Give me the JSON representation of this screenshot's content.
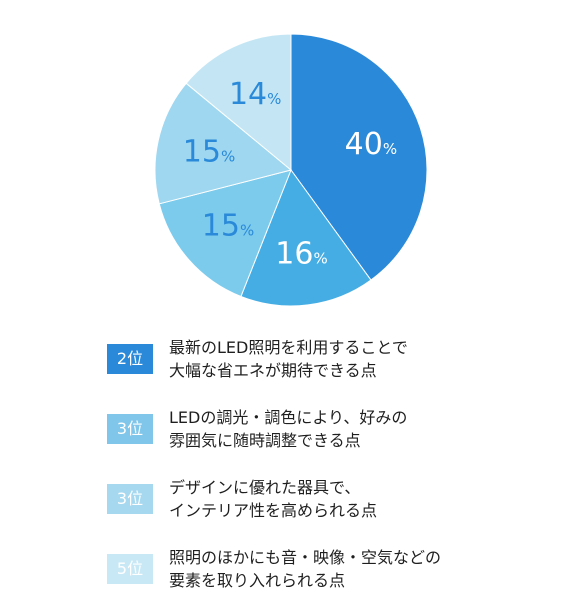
{
  "chart_data": {
    "type": "pie",
    "title": "",
    "values": [
      40,
      16,
      15,
      15,
      14
    ],
    "labels": [
      "40",
      "16",
      "15",
      "15",
      "14"
    ],
    "unit": "%",
    "direction": "clockwise from top",
    "colors": [
      "#2a8ad9",
      "#45ade3",
      "#7ccbec",
      "#9ed7ef",
      "#c4e6f4"
    ]
  },
  "legend": [
    {
      "rank": "2位",
      "color": "#2a8ad9",
      "lines": [
        "最新のLED照明を利用することで",
        "大幅な省エネが期待できる点"
      ]
    },
    {
      "rank": "3位",
      "color": "#7fc6ea",
      "lines": [
        "LEDの調光・調色により、好みの",
        "雰囲気に随時調整できる点"
      ]
    },
    {
      "rank": "3位",
      "color": "#a6d8f0",
      "lines": [
        "デザインに優れた器具で、",
        "インテリア性を高められる点"
      ]
    },
    {
      "rank": "5位",
      "color": "#c9e8f6",
      "lines": [
        "照明のほかにも音・映像・空気などの",
        "要素を取り入れられる点"
      ]
    }
  ]
}
